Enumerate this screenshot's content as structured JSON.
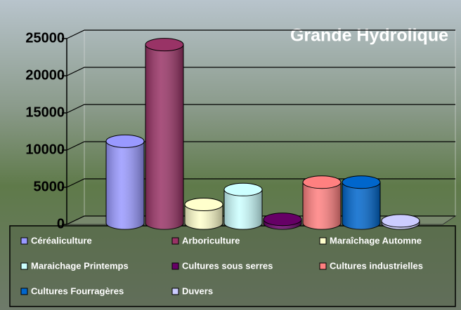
{
  "chart_data": {
    "type": "bar",
    "title": "Grande Hydrolique",
    "categories": [
      "Céréaliculture",
      "Arboriculture",
      "Maraîchage Automne",
      "Maraichage Printemps",
      "Cultures sous serres",
      "Cultures industrielles",
      "Cultures Fourragères",
      "Duvers"
    ],
    "values": [
      11000,
      24000,
      2500,
      4500,
      500,
      5500,
      5500,
      300
    ],
    "colors": [
      "#9999ff",
      "#993366",
      "#ffffcc",
      "#ccffff",
      "#660066",
      "#ff8080",
      "#0066cc",
      "#ccccff"
    ],
    "ylim": [
      0,
      25000
    ],
    "yticks": [
      0,
      5000,
      10000,
      15000,
      20000,
      25000
    ],
    "grid": true
  }
}
